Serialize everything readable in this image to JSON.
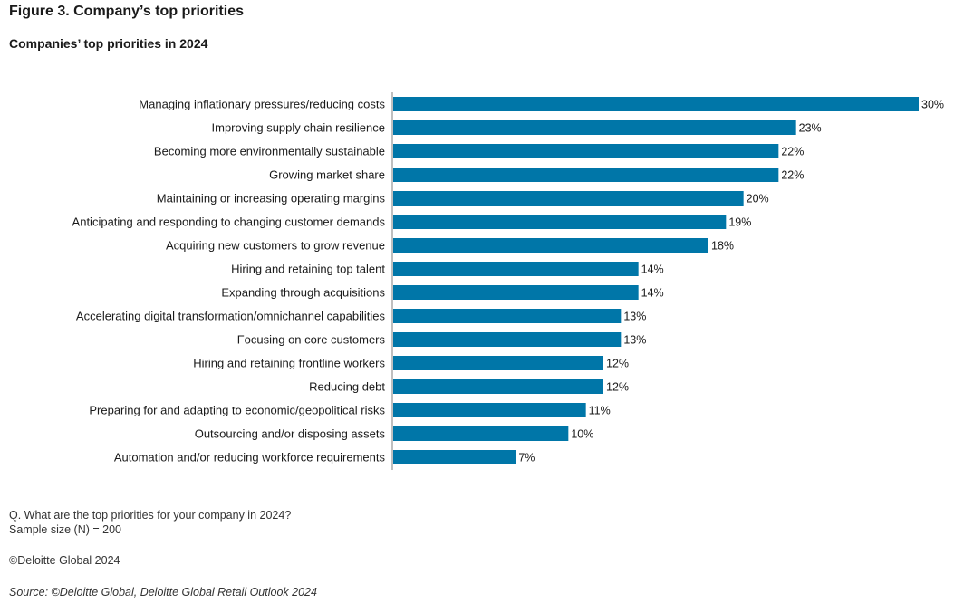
{
  "figure": {
    "title": "Figure 3. Company’s top priorities",
    "subtitle": "Companies’ top priorities in 2024"
  },
  "chart_data": {
    "type": "bar",
    "orientation": "horizontal",
    "categories": [
      "Managing inflationary pressures/reducing costs",
      "Improving supply chain resilience",
      "Becoming more environmentally sustainable",
      "Growing market share",
      "Maintaining or increasing operating margins",
      "Anticipating and responding to changing customer demands",
      "Acquiring new customers to grow revenue",
      "Hiring and retaining top talent",
      "Expanding through acquisitions",
      "Accelerating digital transformation/omnichannel capabilities",
      "Focusing on core customers",
      "Hiring and retaining frontline workers",
      "Reducing debt",
      "Preparing for and adapting to economic/geopolitical risks",
      "Outsourcing and/or disposing assets",
      "Automation and/or reducing workforce requirements"
    ],
    "values": [
      30,
      23,
      22,
      22,
      20,
      19,
      18,
      14,
      14,
      13,
      13,
      12,
      12,
      11,
      10,
      7
    ],
    "value_labels": [
      "30%",
      "23%",
      "22%",
      "22%",
      "20%",
      "19%",
      "18%",
      "14%",
      "14%",
      "13%",
      "13%",
      "12%",
      "12%",
      "11%",
      "10%",
      "7%"
    ],
    "unit": "%",
    "bar_color": "#0076A8",
    "grid": false,
    "legend": "none"
  },
  "notes": {
    "question": "Q. What are the top priorities for your company in 2024?",
    "sample": "Sample size (N) = 200",
    "copyright": "©Deloitte Global 2024",
    "source": "Source: ©Deloitte Global, Deloitte Global Retail Outlook 2024"
  }
}
